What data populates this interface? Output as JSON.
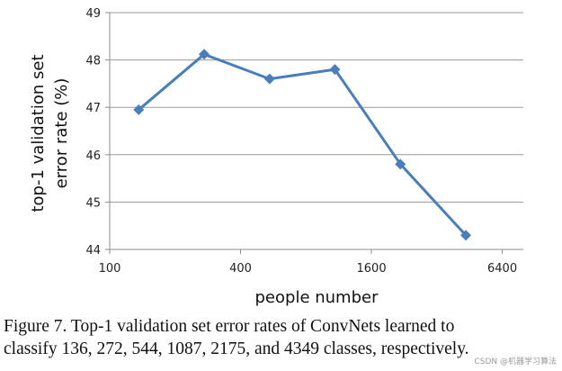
{
  "chart_data": {
    "type": "line",
    "xscale": "log",
    "x": [
      136,
      272,
      544,
      1087,
      2175,
      4349
    ],
    "series": [
      {
        "name": "top-1 validation set error rate",
        "values": [
          46.95,
          48.12,
          47.6,
          47.8,
          45.8,
          44.3
        ],
        "color": "#4a7ebb"
      }
    ],
    "xticks": [
      100,
      400,
      1600,
      6400
    ],
    "xtick_labels": [
      "100",
      "400",
      "1600",
      "6400"
    ],
    "yticks": [
      44,
      45,
      46,
      47,
      48,
      49
    ],
    "ytick_labels": [
      "44",
      "45",
      "46",
      "47",
      "48",
      "49"
    ],
    "xlim": [
      100,
      8000
    ],
    "ylim": [
      44,
      49
    ],
    "xlabel": "people number",
    "ylabel_line1": "top-1 validation set",
    "ylabel_line2": "error rate (%)",
    "grid": "horizontal",
    "marker": "diamond"
  },
  "caption": {
    "line1": "Figure 7. Top-1 validation set error rates of ConvNets learned to",
    "line2": "classify 136, 272, 544, 1087, 2175, and 4349 classes, respectively."
  },
  "watermark": "CSDN @机器学习算法"
}
